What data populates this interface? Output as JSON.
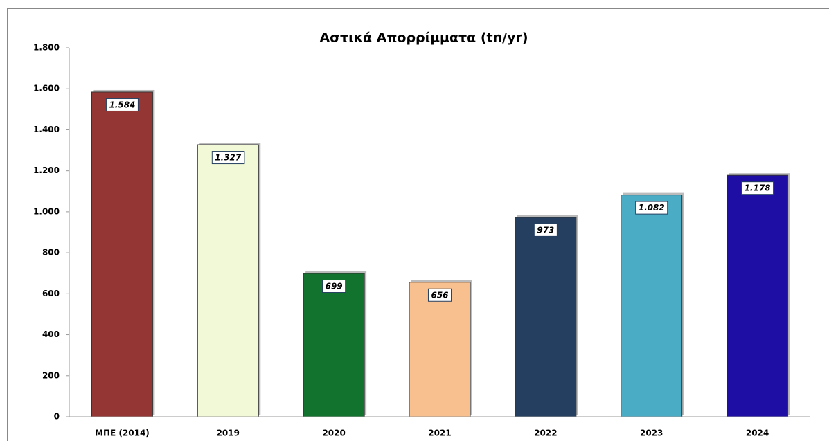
{
  "chart_data": {
    "type": "bar",
    "title": "Αστικά Απορρίμματα (tn/yr)",
    "categories": [
      "ΜΠΕ (2014)",
      "2019",
      "2020",
      "2021",
      "2022",
      "2023",
      "2024"
    ],
    "values": [
      1584,
      1327,
      699,
      656,
      973,
      1082,
      1178
    ],
    "value_labels": [
      "1.584",
      "1.327",
      "699",
      "656",
      "973",
      "1.082",
      "1.178"
    ],
    "colors": [
      "#943634",
      "#f2f9d6",
      "#12732f",
      "#f9c08f",
      "#243f60",
      "#4bacc6",
      "#1f0ea3"
    ],
    "ylim": [
      0,
      1800
    ],
    "yticks": [
      0,
      200,
      400,
      600,
      800,
      {
        "value": 1000,
        "label": "1.000"
      },
      {
        "value": 1200,
        "label": "1.200"
      },
      {
        "value": 1400,
        "label": "1.400"
      },
      {
        "value": 1600,
        "label": "1.600"
      },
      {
        "value": 1800,
        "label": "1.800"
      }
    ],
    "grid": false
  }
}
